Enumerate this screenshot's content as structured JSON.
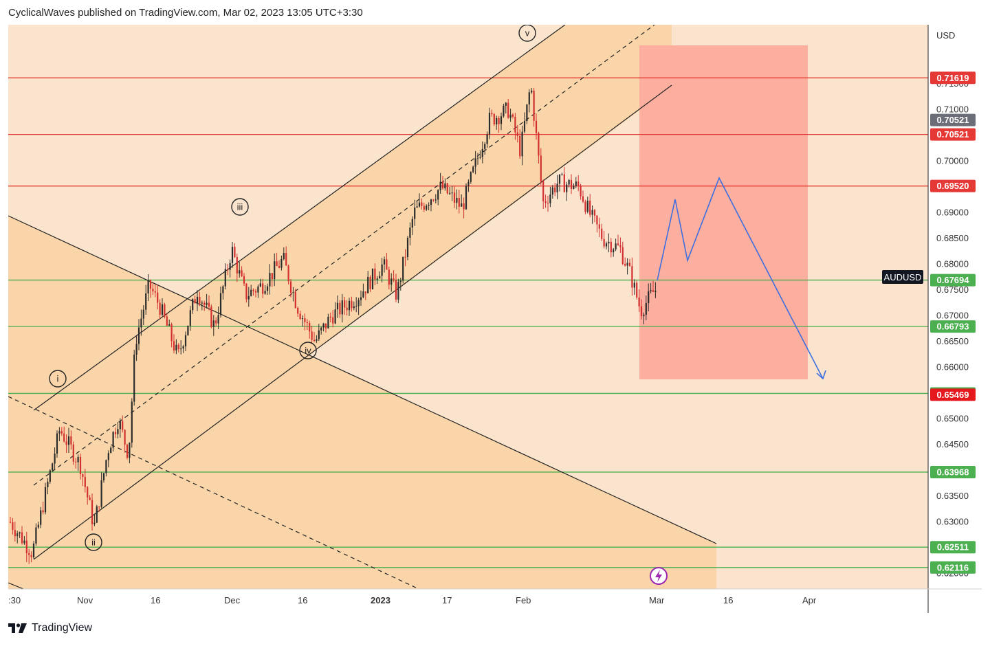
{
  "header": {
    "text": "CyclicalWaves published on TradingView.com, Mar 02, 2023 13:05 UTC+3:30"
  },
  "footer": {
    "brand": "TradingView"
  },
  "chart_data": {
    "type": "candlestick",
    "symbol": "AUDUSD",
    "currency_label": "USD",
    "x_tick_labels": [
      ":30",
      "Nov",
      "16",
      "Dec",
      "16",
      "2023",
      "17",
      "Feb",
      "Mar",
      "16",
      "Apr"
    ],
    "y_tick_labels": [
      "0.71500",
      "0.71000",
      "0.70000",
      "0.69000",
      "0.68500",
      "0.68000",
      "0.67500",
      "0.67000",
      "0.66500",
      "0.66000",
      "0.65000",
      "0.64500",
      "0.63500",
      "0.63000",
      "0.62000"
    ],
    "y_range": [
      0.617,
      0.7265
    ],
    "levels_red": [
      {
        "label": "0.71619",
        "value": 0.71619
      },
      {
        "label": "0.70521",
        "value": 0.70521
      },
      {
        "label": "0.69520",
        "value": 0.6952
      }
    ],
    "levels_green": [
      {
        "label": "0.67694",
        "value": 0.67694
      },
      {
        "label": "0.66793",
        "value": 0.66793
      },
      {
        "label": "0.65495",
        "value": 0.65495
      },
      {
        "label": "0.63968",
        "value": 0.63968
      },
      {
        "label": "0.62511",
        "value": 0.62511
      },
      {
        "label": "0.62116",
        "value": 0.62116
      }
    ],
    "price_tags": [
      {
        "label": "0.70521",
        "value": 0.70521,
        "kind": "current"
      },
      {
        "label": "0.65469",
        "value": 0.65469,
        "kind": "target"
      }
    ],
    "wave_labels": [
      "i",
      "ii",
      "iii",
      "iv",
      "v"
    ],
    "colors": {
      "background": "#fbe4cd",
      "channel_fill": "#f9d5a9",
      "target_zone": "#fcae9f",
      "red_level": "#e53935",
      "green_level": "#4caf50",
      "projection": "#3d6fe0",
      "candle_up": "#2b2b2b",
      "candle_down": "#d32f2f"
    }
  }
}
